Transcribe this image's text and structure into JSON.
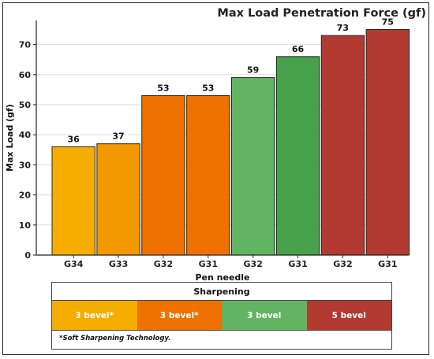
{
  "chart_data": {
    "type": "bar",
    "title": "Max Load Penetration Force (gf)",
    "xlabel": "Pen needle",
    "ylabel": "Max Load (gf)",
    "ylim": [
      0,
      78
    ],
    "yticks": [
      0,
      10,
      20,
      30,
      40,
      50,
      60,
      70
    ],
    "grid": true,
    "categories": [
      "G34",
      "G33",
      "G32",
      "G31",
      "G32",
      "G31",
      "G32",
      "G31"
    ],
    "values": [
      36,
      37,
      53,
      53,
      59,
      66,
      73,
      75
    ],
    "bar_colors": [
      "#f5ad00",
      "#f29900",
      "#ef7200",
      "#ef7200",
      "#62b462",
      "#47a04a",
      "#b23a30",
      "#b23a30"
    ],
    "bar_groups": [
      "3 bevel*",
      "3 bevel*",
      "3 bevel*",
      "3 bevel*",
      "3 bevel",
      "3 bevel",
      "5 bevel",
      "5 bevel"
    ]
  },
  "legend": {
    "title": "Sharpening",
    "items": [
      {
        "label": "3 bevel*",
        "color": "#f5ad00"
      },
      {
        "label": "3 bevel*",
        "color": "#ef7200"
      },
      {
        "label": "3 bevel",
        "color": "#62b462"
      },
      {
        "label": "5 bevel",
        "color": "#b23a30"
      }
    ],
    "note": "*Soft Sharpening Technology."
  }
}
